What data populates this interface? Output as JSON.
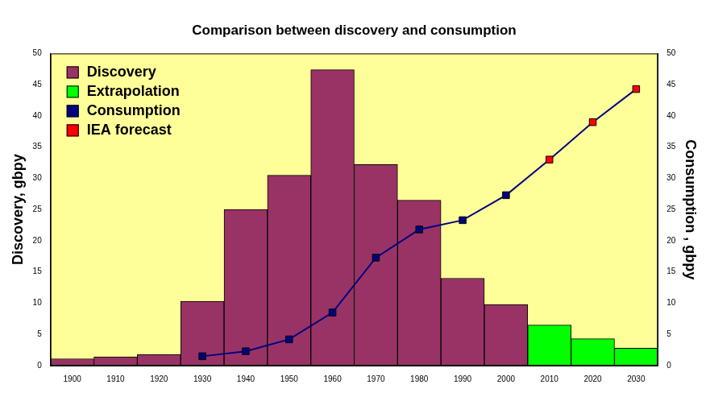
{
  "chart_data": {
    "type": "bar",
    "title": "Comparison between discovery and consumption",
    "y_label": "Discovery, gbpy",
    "y2_label": "Consumption , gbpy",
    "categories": [
      "1900",
      "1910",
      "1920",
      "1930",
      "1940",
      "1950",
      "1960",
      "1970",
      "1980",
      "1990",
      "2000",
      "2010",
      "2020",
      "2030"
    ],
    "series": [
      {
        "name": "Discovery",
        "type": "bar",
        "color": "#993366",
        "values": [
          1.1,
          1.4,
          1.8,
          10.3,
          25,
          30.5,
          47.4,
          32.2,
          26.5,
          14,
          9.8,
          null,
          null,
          null
        ]
      },
      {
        "name": "Extrapolation",
        "type": "bar",
        "color": "#00ff00",
        "values": [
          null,
          null,
          null,
          null,
          null,
          null,
          null,
          null,
          null,
          null,
          null,
          6.5,
          4.3,
          2.8
        ]
      },
      {
        "name": "Consumption",
        "type": "line",
        "axis": "y2",
        "color": "#000080",
        "marker": "square",
        "values": [
          null,
          null,
          null,
          1.5,
          2.3,
          4.2,
          8.5,
          17.3,
          21.8,
          23.3,
          27.3,
          null,
          null,
          null
        ]
      },
      {
        "name": "IEA forecast",
        "type": "line",
        "axis": "y2",
        "color": "#ff0000",
        "marker": "square",
        "values": [
          null,
          null,
          null,
          null,
          null,
          null,
          null,
          null,
          null,
          null,
          null,
          33,
          39,
          44.3
        ]
      }
    ],
    "ylim": [
      0,
      50
    ],
    "yticks": [
      0,
      5,
      10,
      15,
      20,
      25,
      30,
      35,
      40,
      45,
      50
    ],
    "y2lim": [
      0,
      50
    ],
    "y2ticks": [
      0,
      5,
      10,
      15,
      20,
      25,
      30,
      35,
      40,
      45,
      50
    ],
    "grid": false,
    "legend": "upper left"
  }
}
